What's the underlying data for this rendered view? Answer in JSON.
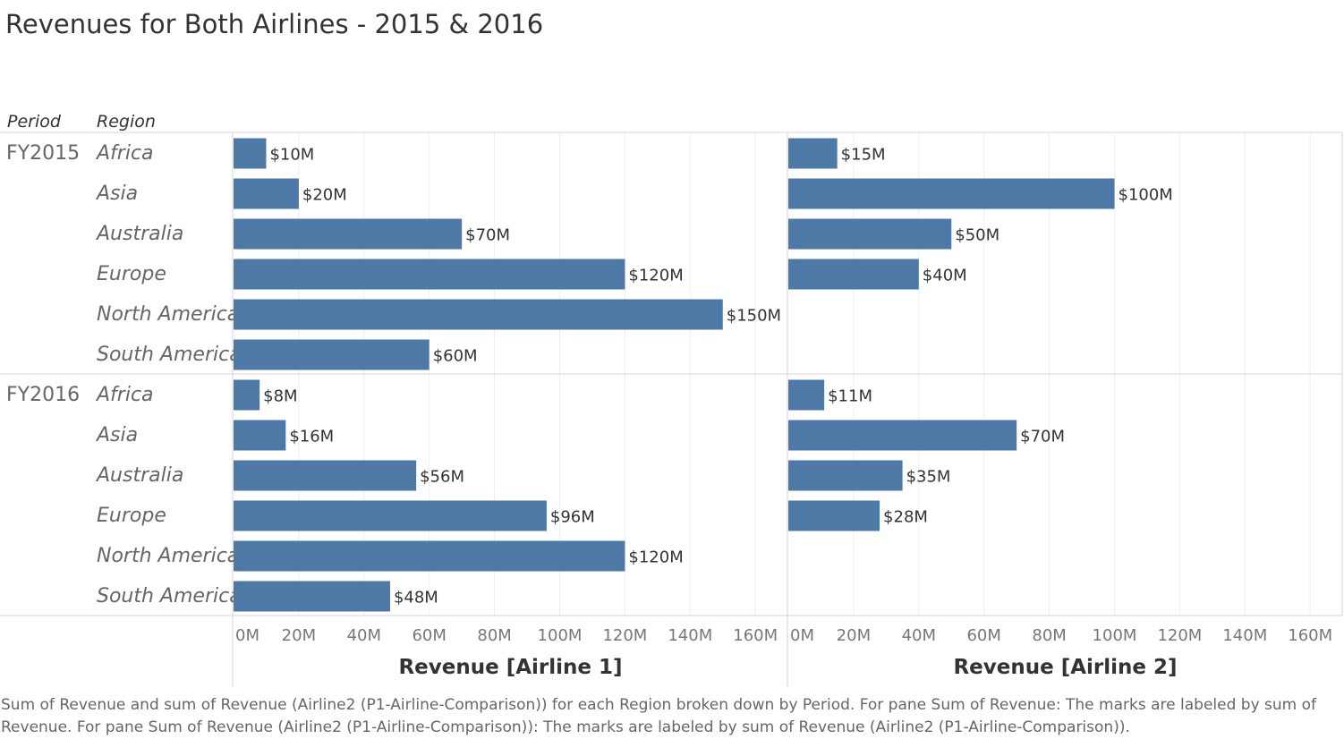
{
  "title": "Revenues for Both Airlines - 2015 & 2016",
  "headers": {
    "period": "Period",
    "region": "Region"
  },
  "bar_color": "#4e79a7",
  "caption": "Sum of Revenue and sum of Revenue (Airline2 (P1-Airline-Comparison)) for each Region broken down by Period.  For pane Sum of Revenue:  The marks are labeled by sum of Revenue.  For pane Sum of Revenue (Airline2 (P1-Airline-Comparison)):  The marks are labeled by sum of Revenue (Airline2 (P1-Airline-Comparison)).",
  "chart_data": {
    "type": "bar",
    "orientation": "horizontal",
    "title": "Revenues for Both Airlines - 2015 & 2016",
    "row_groups": [
      {
        "period": "FY2015",
        "regions": [
          "Africa",
          "Asia",
          "Australia",
          "Europe",
          "North America",
          "South America"
        ]
      },
      {
        "period": "FY2016",
        "regions": [
          "Africa",
          "Asia",
          "Australia",
          "Europe",
          "North America",
          "South America"
        ]
      }
    ],
    "panes": [
      {
        "xlabel": "Revenue [Airline 1]",
        "xlim": [
          0,
          170
        ],
        "ticks": [
          0,
          20,
          40,
          60,
          80,
          100,
          120,
          140,
          160
        ],
        "tick_labels": [
          "0M",
          "20M",
          "40M",
          "60M",
          "80M",
          "100M",
          "120M",
          "140M",
          "160M"
        ],
        "values": [
          [
            10,
            20,
            70,
            120,
            150,
            60
          ],
          [
            8,
            16,
            56,
            96,
            120,
            48
          ]
        ],
        "labels": [
          [
            "$10M",
            "$20M",
            "$70M",
            "$120M",
            "$150M",
            "$60M"
          ],
          [
            "$8M",
            "$16M",
            "$56M",
            "$96M",
            "$120M",
            "$48M"
          ]
        ]
      },
      {
        "xlabel": "Revenue [Airline 2]",
        "xlim": [
          0,
          170
        ],
        "ticks": [
          0,
          20,
          40,
          60,
          80,
          100,
          120,
          140,
          160
        ],
        "tick_labels": [
          "0M",
          "20M",
          "40M",
          "60M",
          "80M",
          "100M",
          "120M",
          "140M",
          "160M"
        ],
        "values": [
          [
            15,
            100,
            50,
            40,
            null,
            null
          ],
          [
            11,
            70,
            35,
            28,
            null,
            null
          ]
        ],
        "labels": [
          [
            "$15M",
            "$100M",
            "$50M",
            "$40M",
            null,
            null
          ],
          [
            "$11M",
            "$70M",
            "$35M",
            "$28M",
            null,
            null
          ]
        ]
      }
    ],
    "grid": true
  }
}
